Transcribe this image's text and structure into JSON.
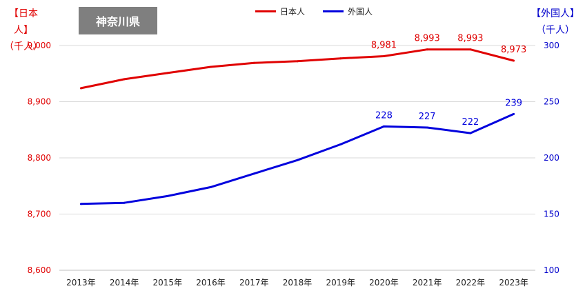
{
  "header": {
    "left_unit_line1": "【日本人】",
    "left_unit_line2": "（千人）",
    "right_unit_line1": "【外国人】",
    "right_unit_line2": "（千人）",
    "region_badge": "神奈川県"
  },
  "colors": {
    "japanese": "#e00000",
    "foreign": "#0000dd",
    "axis_left": "#e00000",
    "axis_right": "#0000cc",
    "grid": "#d9d9d9"
  },
  "chart_data": {
    "type": "line",
    "categories": [
      "2013年",
      "2014年",
      "2015年",
      "2016年",
      "2017年",
      "2018年",
      "2019年",
      "2020年",
      "2021年",
      "2022年",
      "2023年"
    ],
    "series": [
      {
        "name": "日本人",
        "axis": "left",
        "values": [
          8924,
          8940,
          8951,
          8962,
          8969,
          8972,
          8977,
          8981,
          8993,
          8993,
          8973
        ],
        "labels": [
          "",
          "",
          "",
          "",
          "",
          "",
          "",
          "8,981",
          "8,993",
          "8,993",
          "8,973"
        ]
      },
      {
        "name": "外国人",
        "axis": "right",
        "values": [
          159,
          160,
          166,
          174,
          186,
          198,
          212,
          228,
          227,
          222,
          239
        ],
        "labels": [
          "",
          "",
          "",
          "",
          "",
          "",
          "",
          "228",
          "227",
          "222",
          "239"
        ]
      }
    ],
    "y_left": {
      "ylim": [
        8600,
        9000
      ],
      "ticks": [
        "8,600",
        "8,700",
        "8,800",
        "8,900",
        "9,000"
      ]
    },
    "y_right": {
      "ylim": [
        100,
        300
      ],
      "ticks": [
        "100",
        "150",
        "200",
        "250",
        "300"
      ]
    },
    "grid": true,
    "legend": "top-center"
  }
}
